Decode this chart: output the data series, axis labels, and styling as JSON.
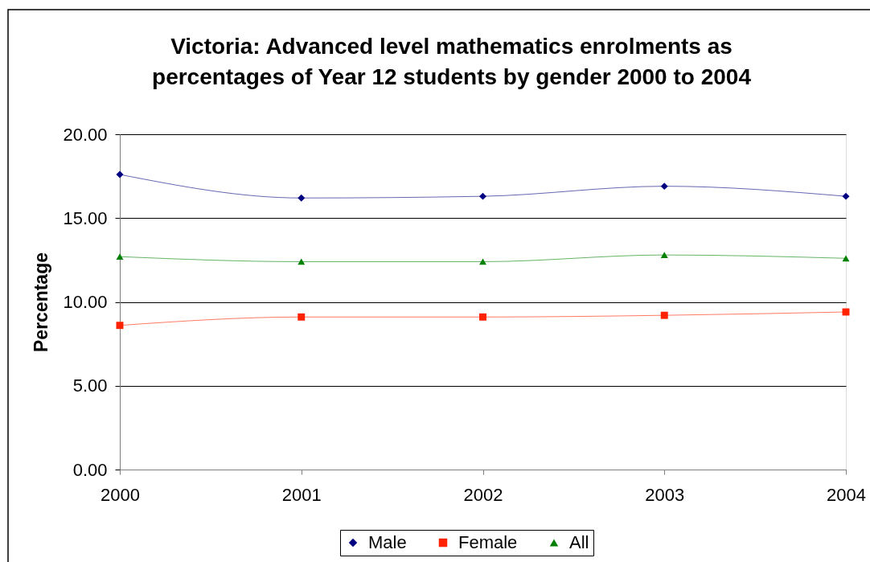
{
  "chart_data": {
    "type": "line",
    "title": "Victoria: Advanced level mathematics enrolments as\npercentages of  Year 12 students by gender 2000 to 2004",
    "ylabel": "Percentage",
    "x": [
      2000,
      2001,
      2002,
      2003,
      2004
    ],
    "xlim": [
      2000,
      2004
    ],
    "xticks": [
      2000,
      2001,
      2002,
      2003,
      2004
    ],
    "ylim": [
      0,
      20
    ],
    "yticks": [
      {
        "value": 0,
        "label": "0.00"
      },
      {
        "value": 5,
        "label": "5.00"
      },
      {
        "value": 10,
        "label": "10.00"
      },
      {
        "value": 15,
        "label": "15.00"
      },
      {
        "value": 20,
        "label": "20.00"
      }
    ],
    "series": [
      {
        "name": "Male",
        "color": "#000080",
        "marker": "diamond",
        "values": [
          17.6,
          16.2,
          16.3,
          16.9,
          16.3
        ]
      },
      {
        "name": "Female",
        "color": "#ff2200",
        "marker": "square",
        "values": [
          8.6,
          9.1,
          9.1,
          9.2,
          9.4
        ]
      },
      {
        "name": "All",
        "color": "#008000",
        "marker": "triangle",
        "values": [
          12.7,
          12.4,
          12.4,
          12.8,
          12.6
        ]
      }
    ],
    "grid": "y",
    "legend": "bottom",
    "line_style": "solid"
  }
}
